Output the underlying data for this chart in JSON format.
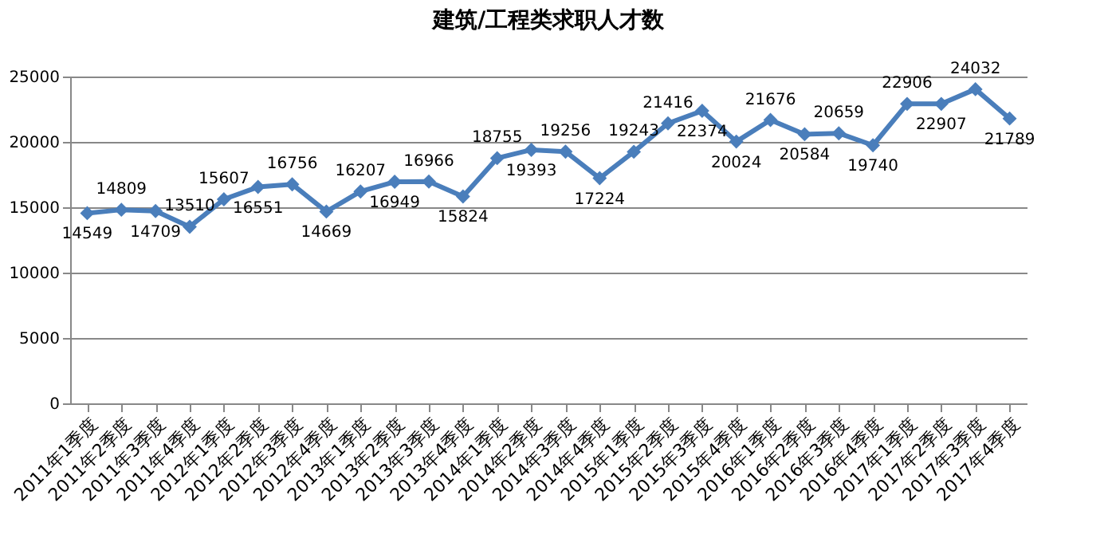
{
  "chart_data": {
    "type": "line",
    "title": "建筑/工程类求职人才数",
    "categories": [
      "2011年1季度",
      "2011年2季度",
      "2011年3季度",
      "2011年4季度",
      "2012年1季度",
      "2012年2季度",
      "2012年3季度",
      "2012年4季度",
      "2013年1季度",
      "2013年2季度",
      "2013年3季度",
      "2013年4季度",
      "2014年1季度",
      "2014年2季度",
      "2014年3季度",
      "2014年4季度",
      "2015年1季度",
      "2015年2季度",
      "2015年3季度",
      "2015年4季度",
      "2016年1季度",
      "2016年2季度",
      "2016年3季度",
      "2016年4季度",
      "2017年1季度",
      "2017年2季度",
      "2017年3季度",
      "2017年4季度"
    ],
    "series": [
      {
        "color": "#4a7ebb",
        "values": [
          14549,
          14809,
          14709,
          13510,
          15607,
          16551,
          16756,
          14669,
          16207,
          16949,
          16966,
          15824,
          18755,
          19393,
          19256,
          17224,
          19243,
          21416,
          22374,
          20024,
          21676,
          20584,
          20659,
          19740,
          22906,
          22907,
          24032,
          21789
        ]
      }
    ],
    "ylim": [
      0,
      25000
    ],
    "yticks": [
      0,
      5000,
      10000,
      15000,
      20000,
      25000
    ],
    "grid": "y",
    "marker": "diamond",
    "line_style": "solid",
    "data_labels": true,
    "legend": false
  }
}
